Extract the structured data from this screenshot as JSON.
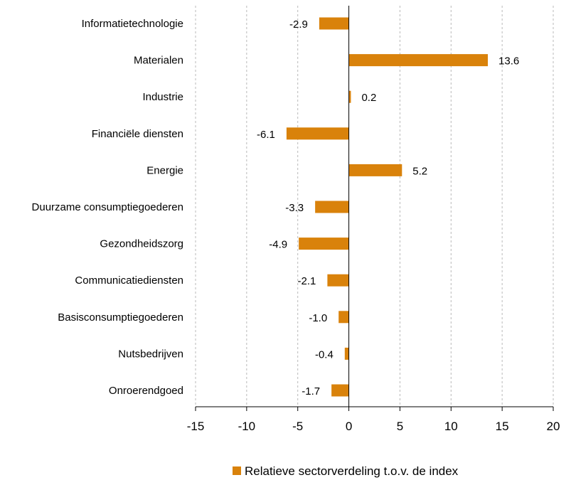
{
  "chart_data": {
    "type": "bar",
    "orientation": "horizontal",
    "categories": [
      "Informatietechnologie",
      "Materialen",
      "Industrie",
      "Financiële diensten",
      "Energie",
      "Duurzame consumptiegoederen",
      "Gezondheidszorg",
      "Communicatiediensten",
      "Basisconsumptiegoederen",
      "Nutsbedrijven",
      "Onroerendgoed"
    ],
    "series": [
      {
        "name": "Relatieve sectorverdeling t.o.v. de index",
        "values": [
          -2.9,
          13.6,
          0.2,
          -6.1,
          5.2,
          -3.3,
          -4.9,
          -2.1,
          -1.0,
          -0.4,
          -1.7
        ],
        "value_labels": [
          "-2.9",
          "13.6",
          "0.2",
          "-6.1",
          "5.2",
          "-3.3",
          "-4.9",
          "-2.1",
          "-1.0",
          "-0.4",
          "-1.7"
        ],
        "color": "#D9820B"
      }
    ],
    "xlim": [
      -15,
      20
    ],
    "xticks": [
      -15,
      -10,
      -5,
      0,
      5,
      10,
      15,
      20
    ],
    "xtick_labels": [
      "-15",
      "-10",
      "-5",
      "0",
      "5",
      "10",
      "15",
      "20"
    ],
    "grid": "vertical-dashed",
    "legend": "bottom"
  }
}
